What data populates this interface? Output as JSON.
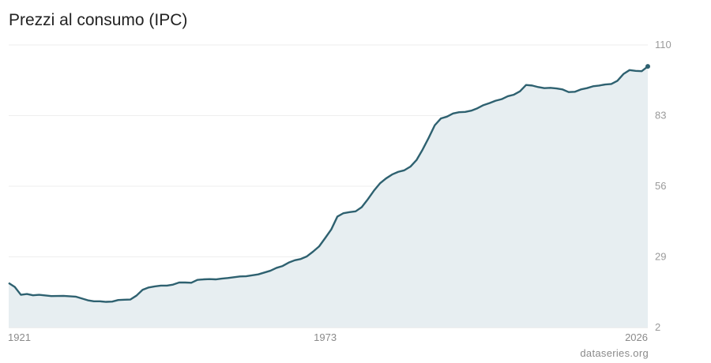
{
  "title": "Prezzi al consumo (IPC)",
  "source": "dataseries.org",
  "colors": {
    "line": "#2e6170",
    "area": "#e7eef1",
    "grid": "#eeeeee",
    "axis": "#dddddd"
  },
  "chart_data": {
    "type": "area",
    "title": "Prezzi al consumo (IPC)",
    "xlabel": "",
    "ylabel": "",
    "xlim": [
      1921,
      2026
    ],
    "ylim": [
      2,
      110
    ],
    "y_ticks": [
      "110",
      "83",
      "56",
      "29",
      "2"
    ],
    "x_ticks": [
      "1921",
      "1973",
      "2026"
    ],
    "grid": true,
    "series": [
      {
        "x": [
          1921,
          1922,
          1923,
          1924,
          1925,
          1926,
          1928,
          1930,
          1932,
          1934,
          1935,
          1936,
          1937,
          1938,
          1939,
          1940,
          1941,
          1942,
          1943,
          1944,
          1945,
          1946,
          1947,
          1948,
          1949,
          1950,
          1951,
          1952,
          1953,
          1954,
          1955,
          1956,
          1957,
          1958,
          1959,
          1960,
          1962,
          1964,
          1965,
          1966,
          1967,
          1968,
          1969,
          1970,
          1971,
          1972,
          1973,
          1974,
          1975,
          1976,
          1977,
          1978,
          1979,
          1980,
          1981,
          1982,
          1983,
          1984,
          1985,
          1986,
          1987,
          1988,
          1989,
          1990,
          1991,
          1992,
          1993,
          1994,
          1995,
          1996,
          1997,
          1998,
          1999,
          2000,
          2001,
          2002,
          2003,
          2004,
          2005,
          2006,
          2007,
          2008,
          2009,
          2010,
          2011,
          2012,
          2013,
          2014,
          2015,
          2016,
          2017,
          2018,
          2019,
          2020,
          2021,
          2022,
          2023,
          2024,
          2025,
          2026
        ],
        "y": [
          19.0,
          17.5,
          14.5,
          14.8,
          14.3,
          14.5,
          14.0,
          14.1,
          13.8,
          12.4,
          12.0,
          12.0,
          11.8,
          11.9,
          12.5,
          12.6,
          12.7,
          14.2,
          16.4,
          17.3,
          17.7,
          18.0,
          18.0,
          18.4,
          19.2,
          19.2,
          19.1,
          20.2,
          20.4,
          20.5,
          20.4,
          20.7,
          20.9,
          21.2,
          21.5,
          21.6,
          22.3,
          23.7,
          24.8,
          25.5,
          26.8,
          27.7,
          28.2,
          29.2,
          31.0,
          33.0,
          36.2,
          39.5,
          44.4,
          45.7,
          46.1,
          46.4,
          48.0,
          51.0,
          54.3,
          57.1,
          59.0,
          60.5,
          61.5,
          62.1,
          63.5,
          66.0,
          70.0,
          74.5,
          79.3,
          81.9,
          82.6,
          83.8,
          84.3,
          84.4,
          84.9,
          85.8,
          87.0,
          87.8,
          88.7,
          89.3,
          90.4,
          91.0,
          92.3,
          94.7,
          94.5,
          93.9,
          93.5,
          93.6,
          93.4,
          93.0,
          92.0,
          92.1,
          93.0,
          93.5,
          94.2,
          94.5,
          94.9,
          95.1,
          96.3,
          98.9,
          100.4,
          100.1,
          100.0,
          101.8
        ]
      }
    ]
  }
}
